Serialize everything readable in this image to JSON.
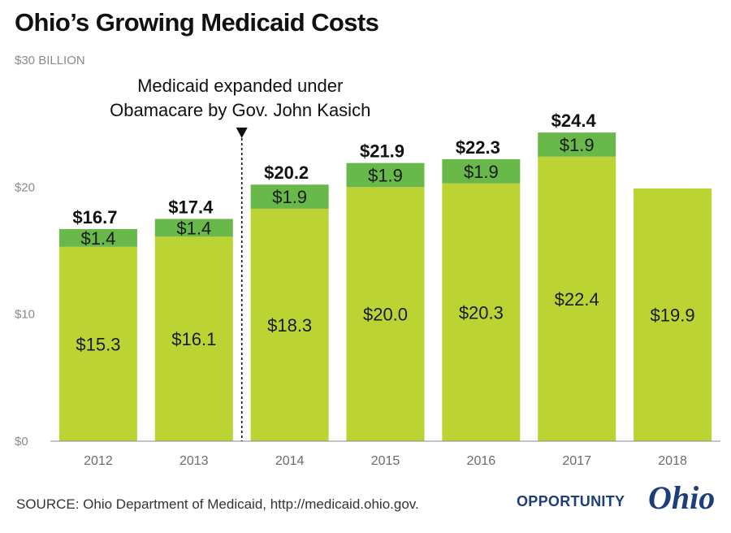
{
  "page": {
    "title": "Ohio’s Growing Medicaid Costs",
    "source": "SOURCE: Ohio Department of Medicaid, http://medicaid.ohio.gov.",
    "brand": {
      "word": "OPPORTUNITY",
      "script": "Ohio"
    }
  },
  "chart_data": {
    "type": "bar",
    "stacked": true,
    "title": "Ohio’s Growing Medicaid Costs",
    "categories": [
      "2012",
      "2013",
      "2014",
      "2015",
      "2016",
      "2017",
      "2018"
    ],
    "series": [
      {
        "values": [
          15.3,
          16.1,
          18.3,
          20.0,
          20.3,
          22.4,
          19.9
        ],
        "labels": [
          "$15.3",
          "$16.1",
          "$18.3",
          "$20.0",
          "$20.3",
          "$22.4",
          "$19.9"
        ],
        "color": "#bcd334"
      },
      {
        "values": [
          1.4,
          1.4,
          1.9,
          1.9,
          1.9,
          1.9,
          null
        ],
        "labels": [
          "$1.4",
          "$1.4",
          "$1.9",
          "$1.9",
          "$1.9",
          "$1.9",
          ""
        ],
        "color": "#68b94a"
      }
    ],
    "totals": [
      16.7,
      17.4,
      20.2,
      21.9,
      22.3,
      24.4,
      null
    ],
    "total_labels": [
      "$16.7",
      "$17.4",
      "$20.2",
      "$21.9",
      "$22.3",
      "$24.4",
      ""
    ],
    "yticks": [
      {
        "value": 0,
        "label": "$0"
      },
      {
        "value": 10,
        "label": "$10"
      },
      {
        "value": 20,
        "label": "$20"
      },
      {
        "value": 30,
        "label": "$30 BILLION"
      }
    ],
    "ylim": [
      0,
      30
    ],
    "grid": false,
    "annotation": {
      "lines": [
        "Medicaid expanded under",
        "Obamacare by Gov. John Kasich"
      ],
      "between": [
        "2013",
        "2014"
      ]
    }
  },
  "colors": {
    "axis": "#888888",
    "brand": "#1c3f7a"
  }
}
